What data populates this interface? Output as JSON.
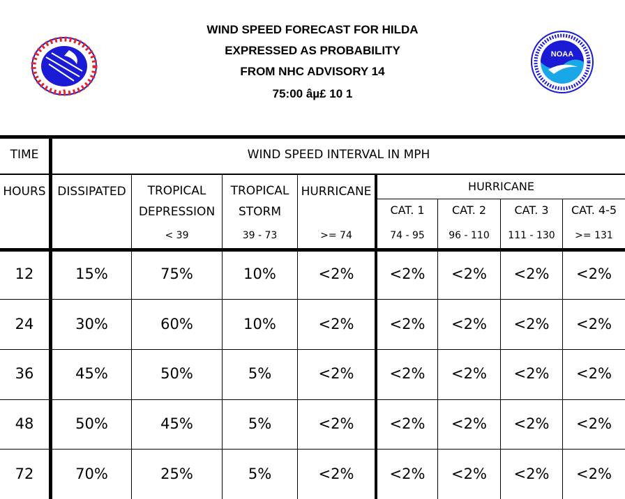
{
  "header": {
    "line1": "WIND SPEED FORECAST FOR HILDA",
    "line2": "EXPRESSED AS PROBABILITY",
    "line3": "FROM NHC ADVISORY   14",
    "line4": "75:00  âµ£  10 1"
  },
  "logos": {
    "left": {
      "name": "national-weather-service-logo",
      "text": "NATIONAL WEATHER SERVICE",
      "colors": {
        "ring": "#ffffff",
        "text": "#e0262d",
        "disc": "#1b1bd6"
      }
    },
    "right": {
      "name": "noaa-logo",
      "text": "NOAA",
      "ring_text": "NATIONAL OCEANIC AND ATMOSPHERIC ADMINISTRATION · U.S. DEPARTMENT OF COMMERCE",
      "colors": {
        "ring": "#1b1bd6",
        "upper": "#1b1bd6",
        "lower": "#19a7e8"
      }
    }
  },
  "table": {
    "time_header": "TIME",
    "interval_header": "WIND SPEED INTERVAL IN MPH",
    "hours_header": "HOURS",
    "columns": {
      "dissipated": "DISSIPATED",
      "td_line1": "TROPICAL",
      "td_line2": "DEPRESSION",
      "td_range": "< 39",
      "ts_line1": "TROPICAL",
      "ts_line2": "STORM",
      "ts_range": "39 - 73",
      "hurricane": "HURRICANE",
      "hurricane_range": ">= 74",
      "hurricane_group": "HURRICANE",
      "cat1": "CAT. 1",
      "cat1_range": "74 - 95",
      "cat2": "CAT. 2",
      "cat2_range": "96 - 110",
      "cat3": "CAT. 3",
      "cat3_range": "111 - 130",
      "cat45": "CAT. 4-5",
      "cat45_range": ">= 131"
    },
    "rows": [
      {
        "hours": "12",
        "values": [
          "15%",
          "75%",
          "10%",
          "<2%",
          "<2%",
          "<2%",
          "<2%",
          "<2%"
        ]
      },
      {
        "hours": "24",
        "values": [
          "30%",
          "60%",
          "10%",
          "<2%",
          "<2%",
          "<2%",
          "<2%",
          "<2%"
        ]
      },
      {
        "hours": "36",
        "values": [
          "45%",
          "50%",
          "5%",
          "<2%",
          "<2%",
          "<2%",
          "<2%",
          "<2%"
        ]
      },
      {
        "hours": "48",
        "values": [
          "50%",
          "45%",
          "5%",
          "<2%",
          "<2%",
          "<2%",
          "<2%",
          "<2%"
        ]
      },
      {
        "hours": "72",
        "values": [
          "70%",
          "25%",
          "5%",
          "<2%",
          "<2%",
          "<2%",
          "<2%",
          "<2%"
        ]
      }
    ]
  }
}
